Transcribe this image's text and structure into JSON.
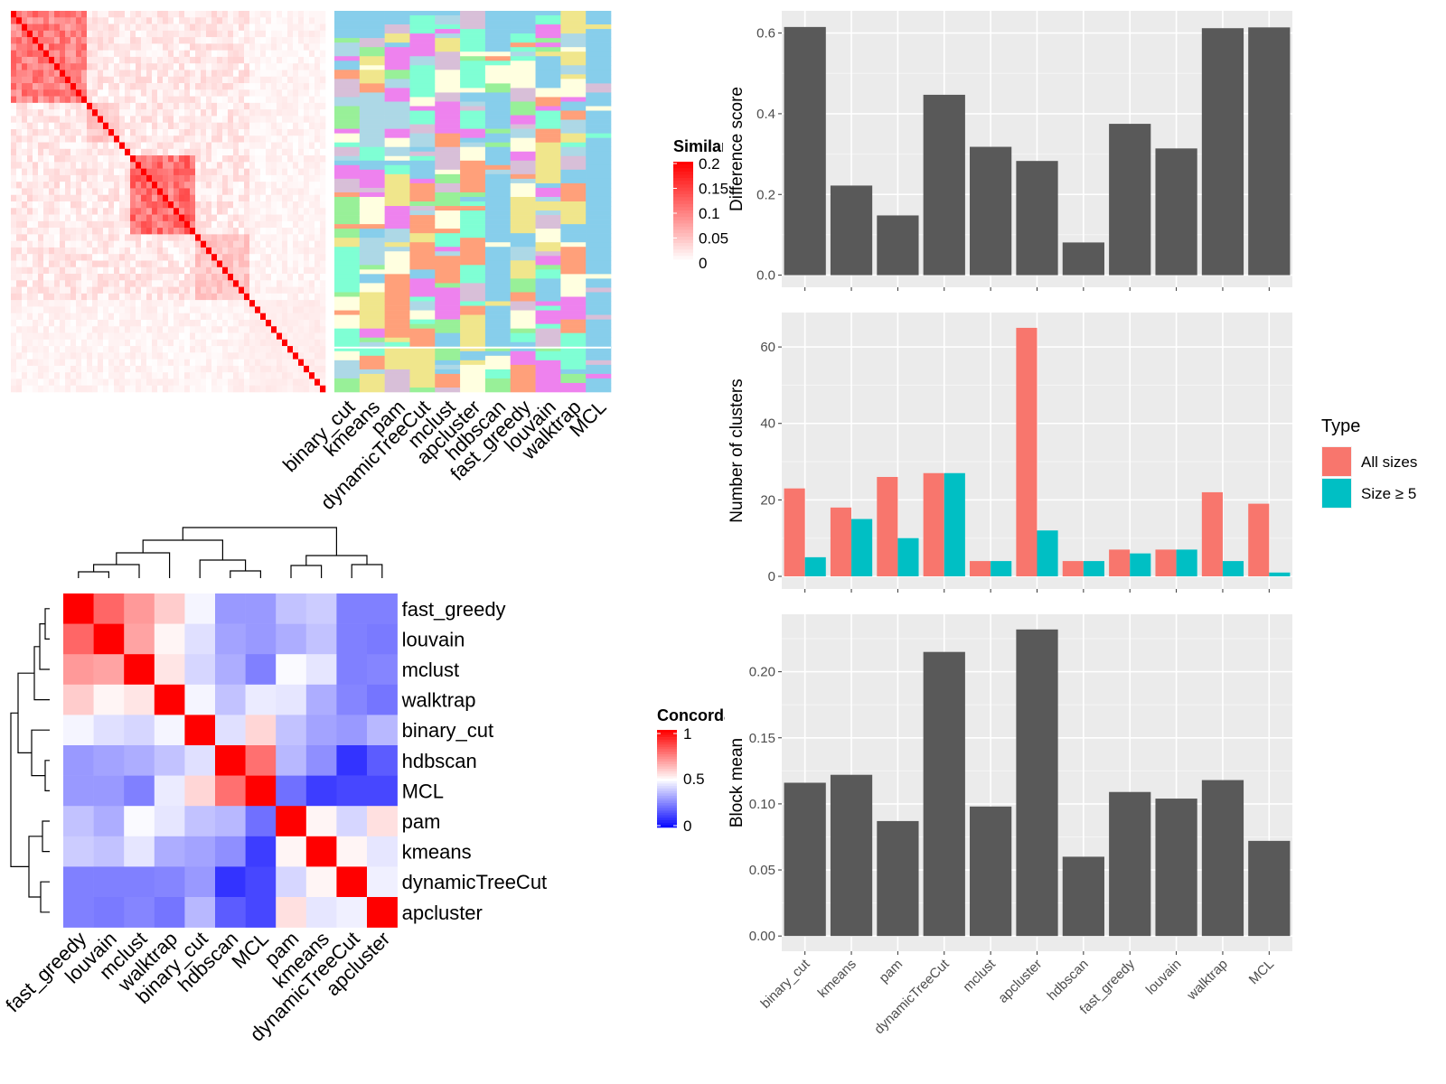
{
  "heatmap_panel": {
    "legend_title": "Similarity",
    "legend_ticks": [
      "0.2",
      "0.15",
      "0.1",
      "0.05",
      "0"
    ],
    "method_labels": [
      "binary_cut",
      "kmeans",
      "pam",
      "dynamicTreeCut",
      "mclust",
      "apcluster",
      "hdbscan",
      "fast_greedy",
      "louvain",
      "walktrap",
      "MCL"
    ],
    "similarity_color_high": "#ff0000",
    "similarity_color_low": "#ffffff",
    "cluster_palette": [
      "#87ceeb",
      "#98f098",
      "#f0e68c",
      "#ffa07a",
      "#ee82ee",
      "#7fffd4",
      "#ffffe0",
      "#d8bfd8",
      "#add8e6"
    ]
  },
  "concordance_panel": {
    "legend_title": "Concordance",
    "legend_ticks": [
      "1",
      "0.5",
      "0"
    ],
    "color_high": "#ff0000",
    "color_mid": "#ffffff",
    "color_low": "#0000ff"
  },
  "chart_data": [
    {
      "type": "heatmap",
      "title": "",
      "legend_title": "Concordance",
      "rows": [
        "fast_greedy",
        "louvain",
        "mclust",
        "walktrap",
        "binary_cut",
        "hdbscan",
        "MCL",
        "pam",
        "kmeans",
        "dynamicTreeCut",
        "apcluster"
      ],
      "cols": [
        "fast_greedy",
        "louvain",
        "mclust",
        "walktrap",
        "binary_cut",
        "hdbscan",
        "MCL",
        "pam",
        "kmeans",
        "dynamicTreeCut",
        "apcluster"
      ],
      "values": [
        [
          1.0,
          0.8,
          0.7,
          0.6,
          0.48,
          0.3,
          0.3,
          0.38,
          0.4,
          0.25,
          0.25
        ],
        [
          0.8,
          1.0,
          0.68,
          0.52,
          0.44,
          0.32,
          0.3,
          0.34,
          0.38,
          0.25,
          0.24
        ],
        [
          0.7,
          0.68,
          1.0,
          0.55,
          0.42,
          0.34,
          0.25,
          0.49,
          0.45,
          0.25,
          0.26
        ],
        [
          0.6,
          0.52,
          0.55,
          1.0,
          0.48,
          0.38,
          0.46,
          0.45,
          0.34,
          0.26,
          0.23
        ],
        [
          0.48,
          0.44,
          0.42,
          0.48,
          1.0,
          0.44,
          0.58,
          0.38,
          0.32,
          0.3,
          0.36
        ],
        [
          0.3,
          0.32,
          0.34,
          0.38,
          0.44,
          1.0,
          0.78,
          0.36,
          0.28,
          0.1,
          0.18
        ],
        [
          0.3,
          0.3,
          0.25,
          0.46,
          0.58,
          0.78,
          1.0,
          0.22,
          0.12,
          0.14,
          0.14
        ],
        [
          0.38,
          0.34,
          0.49,
          0.45,
          0.38,
          0.36,
          0.22,
          1.0,
          0.52,
          0.42,
          0.56
        ],
        [
          0.4,
          0.38,
          0.45,
          0.34,
          0.32,
          0.28,
          0.12,
          0.52,
          1.0,
          0.52,
          0.45
        ],
        [
          0.25,
          0.25,
          0.25,
          0.26,
          0.3,
          0.1,
          0.14,
          0.42,
          0.52,
          1.0,
          0.47
        ],
        [
          0.25,
          0.24,
          0.26,
          0.23,
          0.36,
          0.18,
          0.14,
          0.56,
          0.45,
          0.47,
          1.0
        ]
      ],
      "color_range": [
        0,
        1
      ]
    },
    {
      "type": "bar",
      "title": "",
      "xlabel": "",
      "ylabel": "Difference score",
      "categories": [
        "binary_cut",
        "kmeans",
        "pam",
        "dynamicTreeCut",
        "mclust",
        "apcluster",
        "hdbscan",
        "fast_greedy",
        "louvain",
        "walktrap",
        "MCL"
      ],
      "values": [
        0.615,
        0.222,
        0.148,
        0.447,
        0.318,
        0.283,
        0.081,
        0.375,
        0.314,
        0.612,
        0.614
      ],
      "ylim": [
        -0.03,
        0.655
      ],
      "yticks": [
        0.0,
        0.2,
        0.4,
        0.6
      ],
      "ytick_labels": [
        "0.0",
        "0.2",
        "0.4",
        "0.6"
      ],
      "bar_color": "#595959",
      "grid": true
    },
    {
      "type": "bar",
      "title": "",
      "xlabel": "",
      "ylabel": "Number of clusters",
      "categories": [
        "binary_cut",
        "kmeans",
        "pam",
        "dynamicTreeCut",
        "mclust",
        "apcluster",
        "hdbscan",
        "fast_greedy",
        "louvain",
        "walktrap",
        "MCL"
      ],
      "legend_title": "Type",
      "legend_position": "right",
      "series": [
        {
          "name": "All sizes",
          "color": "#f8766d",
          "values": [
            23,
            18,
            26,
            27,
            4,
            65,
            4,
            7,
            7,
            22,
            19
          ]
        },
        {
          "name": "Size ≥ 5",
          "color": "#00bfc4",
          "values": [
            5,
            15,
            10,
            27,
            4,
            12,
            4,
            6,
            7,
            4,
            1
          ]
        }
      ],
      "ylim": [
        -3.3,
        69
      ],
      "yticks": [
        0,
        20,
        40,
        60
      ],
      "ytick_labels": [
        "0",
        "20",
        "40",
        "60"
      ],
      "grid": true
    },
    {
      "type": "bar",
      "title": "",
      "xlabel": "",
      "ylabel": "Block mean",
      "categories": [
        "binary_cut",
        "kmeans",
        "pam",
        "dynamicTreeCut",
        "mclust",
        "apcluster",
        "hdbscan",
        "fast_greedy",
        "louvain",
        "walktrap",
        "MCL"
      ],
      "values": [
        0.116,
        0.122,
        0.087,
        0.215,
        0.098,
        0.232,
        0.06,
        0.109,
        0.104,
        0.118,
        0.072
      ],
      "ylim": [
        -0.0115,
        0.2435
      ],
      "yticks": [
        0.0,
        0.05,
        0.1,
        0.15,
        0.2
      ],
      "ytick_labels": [
        "0.00",
        "0.05",
        "0.10",
        "0.15",
        "0.20"
      ],
      "bar_color": "#595959",
      "grid": true
    }
  ]
}
